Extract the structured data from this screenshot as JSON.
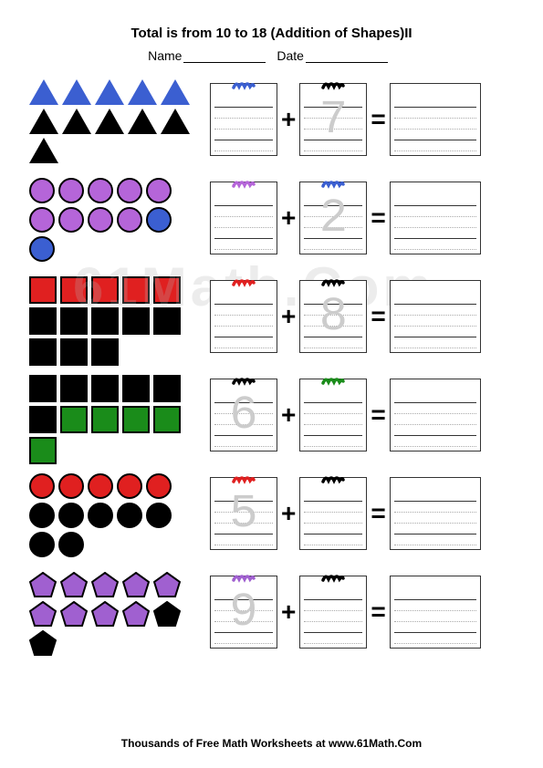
{
  "title": "Total is from 10 to 18 (Addition of Shapes)II",
  "name_label": "Name",
  "date_label": "Date",
  "footer": "Thousands of Free Math Worksheets at www.61Math.Com",
  "watermark": "61Math.Com",
  "colors": {
    "blue": "#3b5fd1",
    "black": "#000000",
    "purple": "#b565d9",
    "red": "#e02020",
    "green": "#1a8c1a",
    "violet": "#a060d0"
  },
  "problems": [
    {
      "shape": "triangle",
      "rows": [
        [
          {
            "c": "blue"
          },
          {
            "c": "blue"
          },
          {
            "c": "blue"
          },
          {
            "c": "blue"
          },
          {
            "c": "blue"
          }
        ],
        [
          {
            "c": "black"
          },
          {
            "c": "black"
          },
          {
            "c": "black"
          },
          {
            "c": "black"
          },
          {
            "c": "black"
          }
        ],
        [
          {
            "c": "black"
          }
        ]
      ],
      "box1": {
        "scribble": "#3b5fd1",
        "trace": ""
      },
      "box2": {
        "scribble": "#000000",
        "trace": "7"
      }
    },
    {
      "shape": "circle",
      "rows": [
        [
          {
            "c": "purple"
          },
          {
            "c": "purple"
          },
          {
            "c": "purple"
          },
          {
            "c": "purple"
          },
          {
            "c": "purple"
          }
        ],
        [
          {
            "c": "purple"
          },
          {
            "c": "purple"
          },
          {
            "c": "purple"
          },
          {
            "c": "purple"
          },
          {
            "c": "blue"
          }
        ],
        [
          {
            "c": "blue"
          }
        ]
      ],
      "box1": {
        "scribble": "#b565d9",
        "trace": ""
      },
      "box2": {
        "scribble": "#3b5fd1",
        "trace": "2"
      }
    },
    {
      "shape": "square",
      "rows": [
        [
          {
            "c": "red"
          },
          {
            "c": "red"
          },
          {
            "c": "red"
          },
          {
            "c": "red"
          },
          {
            "c": "red"
          }
        ],
        [
          {
            "c": "black"
          },
          {
            "c": "black"
          },
          {
            "c": "black"
          },
          {
            "c": "black"
          },
          {
            "c": "black"
          }
        ],
        [
          {
            "c": "black"
          },
          {
            "c": "black"
          },
          {
            "c": "black"
          }
        ]
      ],
      "box1": {
        "scribble": "#e02020",
        "trace": ""
      },
      "box2": {
        "scribble": "#000000",
        "trace": "8"
      }
    },
    {
      "shape": "square",
      "rows": [
        [
          {
            "c": "black"
          },
          {
            "c": "black"
          },
          {
            "c": "black"
          },
          {
            "c": "black"
          },
          {
            "c": "black"
          }
        ],
        [
          {
            "c": "black"
          },
          {
            "c": "green"
          },
          {
            "c": "green"
          },
          {
            "c": "green"
          },
          {
            "c": "green"
          }
        ],
        [
          {
            "c": "green"
          }
        ]
      ],
      "box1": {
        "scribble": "#000000",
        "trace": "6"
      },
      "box2": {
        "scribble": "#1a8c1a",
        "trace": ""
      }
    },
    {
      "shape": "circle",
      "rows": [
        [
          {
            "c": "red"
          },
          {
            "c": "red"
          },
          {
            "c": "red"
          },
          {
            "c": "red"
          },
          {
            "c": "red"
          }
        ],
        [
          {
            "c": "black"
          },
          {
            "c": "black"
          },
          {
            "c": "black"
          },
          {
            "c": "black"
          },
          {
            "c": "black"
          }
        ],
        [
          {
            "c": "black"
          },
          {
            "c": "black"
          }
        ]
      ],
      "box1": {
        "scribble": "#e02020",
        "trace": "5"
      },
      "box2": {
        "scribble": "#000000",
        "trace": ""
      }
    },
    {
      "shape": "pentagon",
      "rows": [
        [
          {
            "c": "violet"
          },
          {
            "c": "violet"
          },
          {
            "c": "violet"
          },
          {
            "c": "violet"
          },
          {
            "c": "violet"
          }
        ],
        [
          {
            "c": "violet"
          },
          {
            "c": "violet"
          },
          {
            "c": "violet"
          },
          {
            "c": "violet"
          },
          {
            "c": "black"
          }
        ],
        [
          {
            "c": "black"
          }
        ]
      ],
      "box1": {
        "scribble": "#a060d0",
        "trace": "9"
      },
      "box2": {
        "scribble": "#000000",
        "trace": ""
      }
    }
  ],
  "op_plus": "+",
  "op_equals": "="
}
